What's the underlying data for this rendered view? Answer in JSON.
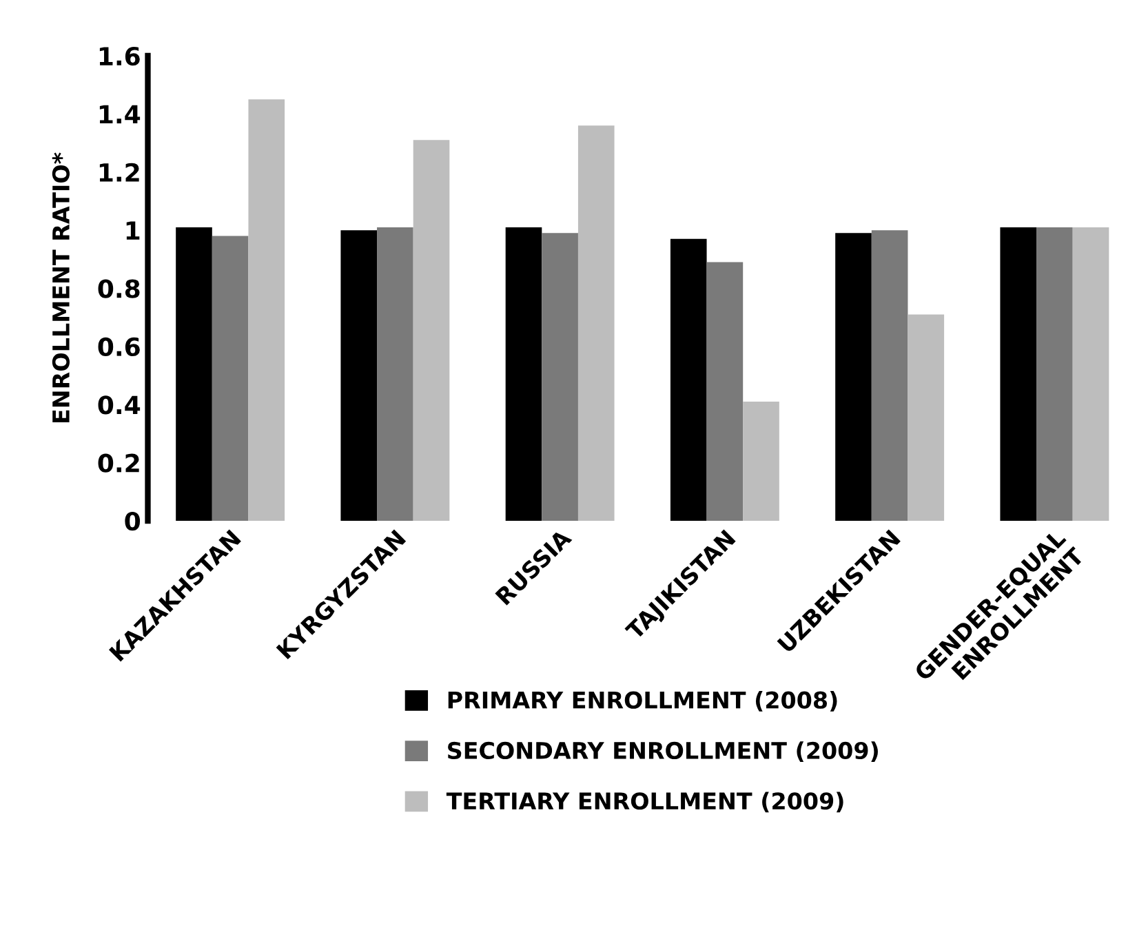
{
  "chart_data": {
    "type": "bar",
    "ylabel": "ENROLLMENT RATIO*",
    "categories": [
      "KAZAKHSTAN",
      "KYRGYZSTAN",
      "RUSSIA",
      "TAJIKISTAN",
      "UZBEKISTAN",
      "GENDER-EQUAL\nENROLLMENT"
    ],
    "series": [
      {
        "name": "PRIMARY ENROLLMENT (2008)",
        "color": "#000000",
        "values": [
          1.01,
          1.0,
          1.01,
          0.97,
          0.99,
          1.01
        ]
      },
      {
        "name": "SECONDARY ENROLLMENT (2009)",
        "color": "#7a7a7a",
        "values": [
          0.98,
          1.01,
          0.99,
          0.89,
          1.0,
          1.01
        ]
      },
      {
        "name": "TERTIARY ENROLLMENT (2009)",
        "color": "#bdbdbd",
        "values": [
          1.45,
          1.31,
          1.36,
          0.41,
          0.71,
          1.01
        ]
      }
    ],
    "ylim": [
      0,
      1.6
    ],
    "yticks": [
      0,
      0.2,
      0.4,
      0.6,
      0.8,
      1,
      1.2,
      1.4,
      1.6
    ],
    "grid": false,
    "legend": "bottom"
  }
}
